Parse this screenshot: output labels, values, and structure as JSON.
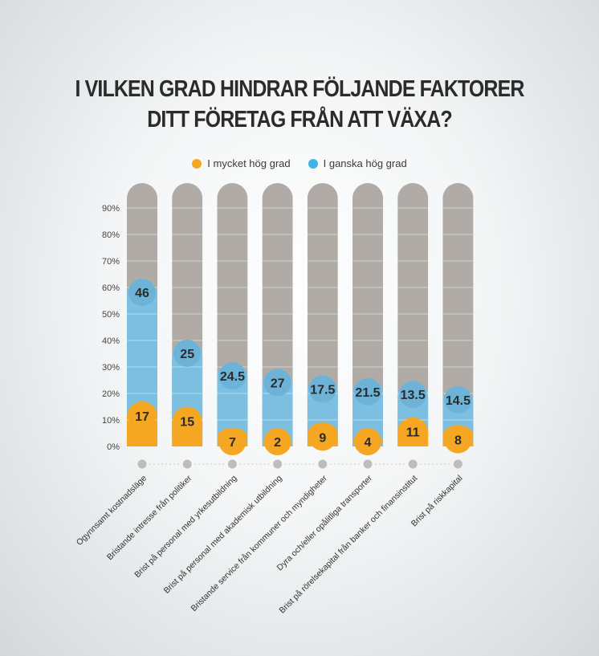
{
  "title_line1": "I VILKEN GRAD HINDRAR FÖLJANDE FAKTORER",
  "title_line2": "DITT FÖRETAG FRÅN ATT VÄXA?",
  "colors": {
    "orange": "#f5a623",
    "blue": "#7cbfe0",
    "blue_badge": "#6db3d8",
    "gray": "#b0aba7"
  },
  "chart_data": {
    "type": "bar",
    "stacked": true,
    "categories": [
      "Ogynnsamt kostnadsläge",
      "Bristande intresse från politiker",
      "Brist på personal med yrkesutbildning",
      "Brist på personal med akademisk utbildning",
      "Bristande service från kommuner och myndigheter",
      "Dyra och/eller opålitliga transporter",
      "Brist på rörelsekapital från banker och finansinstitut",
      "Brist på riskkapital"
    ],
    "series": [
      {
        "name": "I mycket hög grad",
        "values": [
          17,
          15,
          7,
          2,
          9,
          4,
          11,
          8
        ],
        "labels": [
          "17",
          "15",
          "7",
          "2",
          "9",
          "4",
          "11",
          "8"
        ]
      },
      {
        "name": "I ganska hög grad",
        "values": [
          46,
          25,
          24.5,
          27,
          17.5,
          21.5,
          13.5,
          14.5
        ],
        "labels": [
          "46",
          "25",
          "24.5",
          "27",
          "17.5",
          "21.5",
          "13.5",
          "14.5"
        ]
      }
    ],
    "ytick_labels": [
      "0%",
      "10%",
      "20%",
      "30%",
      "40%",
      "50%",
      "60%",
      "70%",
      "80%",
      "90%"
    ],
    "ylim": [
      0,
      100
    ],
    "grid": true,
    "legend_position": "top"
  }
}
